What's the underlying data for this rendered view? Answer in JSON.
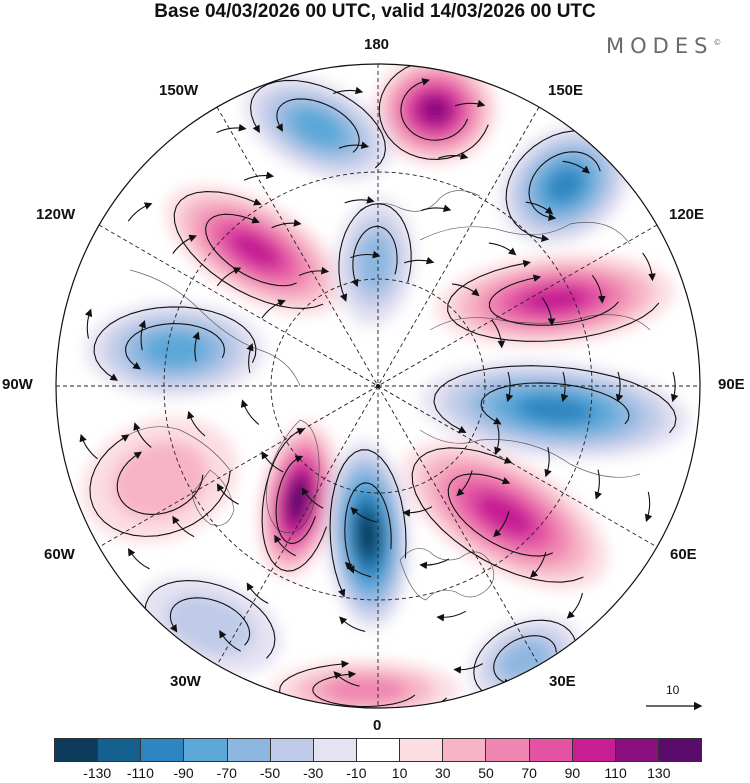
{
  "title": "Base 04/03/2026 00 UTC, valid 14/03/2026 00 UTC",
  "brand": "MODES",
  "brand_mark": "©",
  "longitude_labels": {
    "lon_180": "180",
    "lon_150e": "150E",
    "lon_120e": "120E",
    "lon_90e": "90E",
    "lon_60e": "60E",
    "lon_30e": "30E",
    "lon_0": "0",
    "lon_30w": "30W",
    "lon_60w": "60W",
    "lon_90w": "90W",
    "lon_120w": "120W",
    "lon_150w": "150W"
  },
  "reference_vector": "10",
  "colorbar": {
    "colors": [
      "#0d3b5c",
      "#14608f",
      "#2e86c1",
      "#5aa7d8",
      "#8db7e0",
      "#bfcbe8",
      "#e5e2f2",
      "#ffffff",
      "#fbdde2",
      "#f7b4c6",
      "#ef86b1",
      "#e452a4",
      "#c61f94",
      "#8a0f7f",
      "#5a0b6b"
    ],
    "labels": [
      "-130",
      "-110",
      "-90",
      "-70",
      "-50",
      "-30",
      "-10",
      "10",
      "30",
      "50",
      "70",
      "90",
      "110",
      "130"
    ]
  },
  "anomaly_cells": [
    {
      "name": "positive-180",
      "value": 110
    },
    {
      "name": "negative-150w",
      "value": -70
    },
    {
      "name": "negative-150e",
      "value": -90
    },
    {
      "name": "positive-120w",
      "value": 90
    },
    {
      "name": "negative-165w",
      "value": -50
    },
    {
      "name": "positive-120e",
      "value": 90
    },
    {
      "name": "negative-90w",
      "value": -70
    },
    {
      "name": "negative-90e",
      "value": -90
    },
    {
      "name": "positive-60w",
      "value": 30
    },
    {
      "name": "positive-30w-inner",
      "value": 130
    },
    {
      "name": "negative-0",
      "value": -130
    },
    {
      "name": "positive-60e",
      "value": 90
    },
    {
      "name": "negative-30w-outer",
      "value": -30
    },
    {
      "name": "positive-0-outer",
      "value": 50
    },
    {
      "name": "negative-30e-outer",
      "value": -50
    }
  ]
}
